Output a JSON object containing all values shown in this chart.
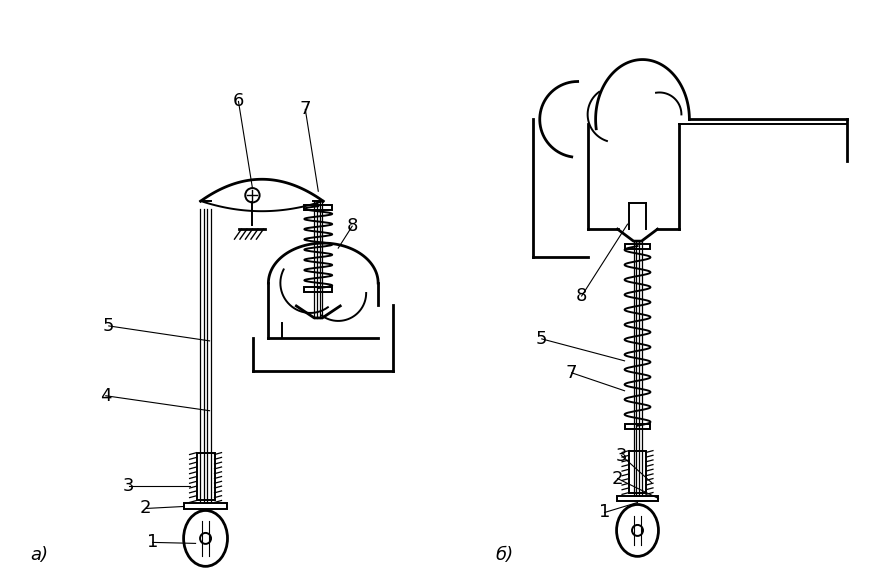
{
  "fig_width": 8.69,
  "fig_height": 5.81,
  "bg_color": "#ffffff",
  "line_color": "#000000",
  "label_a": "a)",
  "label_b": "б)",
  "label_fontsize": 13,
  "number_fontsize": 13
}
